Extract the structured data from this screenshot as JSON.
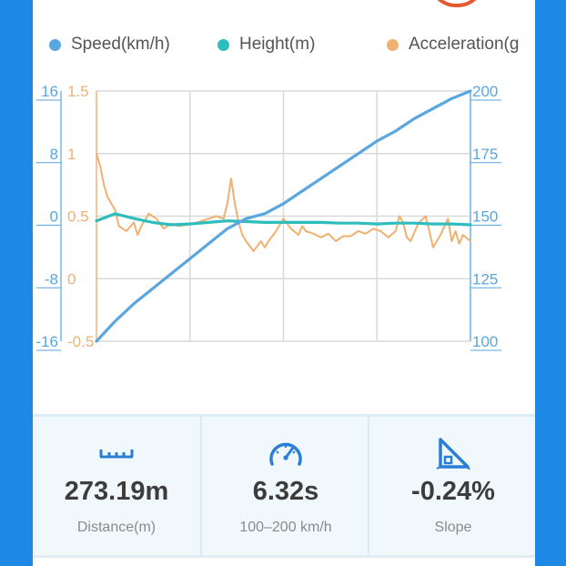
{
  "legend": [
    {
      "label": "Speed(km/h)",
      "color": "#5aa6e0"
    },
    {
      "label": "Height(m)",
      "color": "#2ebdbd"
    },
    {
      "label": "Acceleration(g",
      "color": "#f0b070"
    }
  ],
  "chart_data": {
    "type": "line",
    "axes": {
      "height_ticks": [
        "16",
        "8",
        "0",
        "-8",
        "-16"
      ],
      "acceleration_ticks": [
        "1.5",
        "1",
        "0.5",
        "0",
        "-0.5"
      ],
      "speed_ticks": [
        "200",
        "175",
        "150",
        "125",
        "100"
      ],
      "height_range": [
        -16,
        16
      ],
      "acceleration_range": [
        -0.5,
        1.5
      ],
      "speed_range": [
        100,
        200
      ]
    },
    "grid": true,
    "x_range": [
      0,
      100
    ],
    "series": [
      {
        "name": "Speed(km/h)",
        "color": "#5aa6e0",
        "axis": "right",
        "x": [
          0,
          5,
          10,
          15,
          20,
          25,
          30,
          35,
          40,
          45,
          50,
          55,
          60,
          65,
          70,
          75,
          80,
          85,
          90,
          95,
          100
        ],
        "y": [
          100,
          108,
          115,
          121,
          127,
          133,
          139,
          145,
          149,
          151,
          155,
          160,
          165,
          170,
          175,
          180,
          184,
          189,
          193,
          197,
          200
        ]
      },
      {
        "name": "Height(m)",
        "color": "#2ebdbd",
        "axis": "left",
        "x": [
          0,
          5,
          10,
          15,
          20,
          25,
          30,
          35,
          40,
          45,
          50,
          55,
          60,
          65,
          70,
          75,
          80,
          85,
          90,
          95,
          100
        ],
        "y": [
          -0.6,
          0.3,
          -0.3,
          -0.8,
          -1.1,
          -1.0,
          -0.8,
          -0.6,
          -0.7,
          -0.8,
          -0.8,
          -0.8,
          -0.8,
          -0.9,
          -0.9,
          -1.0,
          -0.9,
          -0.9,
          -1.0,
          -1.0,
          -1.1
        ]
      },
      {
        "name": "Acceleration(g",
        "color": "#f0b070",
        "axis": "mid",
        "x": [
          0,
          1,
          2,
          3,
          5,
          6,
          8,
          10,
          11,
          12,
          14,
          16,
          18,
          20,
          22,
          24,
          26,
          28,
          30,
          32,
          34,
          35,
          36,
          37,
          38,
          39,
          40,
          42,
          44,
          45,
          46,
          48,
          50,
          52,
          54,
          55,
          56,
          58,
          60,
          62,
          64,
          66,
          68,
          70,
          72,
          74,
          76,
          78,
          80,
          81,
          82,
          83,
          84,
          86,
          88,
          89,
          90,
          92,
          94,
          95,
          96,
          97,
          98,
          100
        ],
        "y": [
          1.0,
          0.9,
          0.75,
          0.65,
          0.55,
          0.42,
          0.38,
          0.45,
          0.35,
          0.42,
          0.52,
          0.48,
          0.4,
          0.44,
          0.42,
          0.43,
          0.44,
          0.46,
          0.48,
          0.5,
          0.48,
          0.6,
          0.8,
          0.6,
          0.45,
          0.35,
          0.3,
          0.22,
          0.3,
          0.25,
          0.3,
          0.38,
          0.48,
          0.4,
          0.35,
          0.42,
          0.38,
          0.36,
          0.33,
          0.36,
          0.3,
          0.34,
          0.34,
          0.38,
          0.36,
          0.4,
          0.38,
          0.33,
          0.38,
          0.5,
          0.45,
          0.33,
          0.3,
          0.44,
          0.5,
          0.38,
          0.25,
          0.35,
          0.48,
          0.3,
          0.38,
          0.28,
          0.35,
          0.3
        ]
      }
    ]
  },
  "stats": [
    {
      "icon": "ruler-icon",
      "value": "273.19m",
      "label": "Distance(m)"
    },
    {
      "icon": "speedometer-icon",
      "value": "6.32s",
      "label": "100–200 km/h"
    },
    {
      "icon": "slope-icon",
      "value": "-0.24%",
      "label": "Slope"
    }
  ],
  "colors": {
    "frame": "#1e88e5",
    "badge": "#e35b33",
    "icon": "#2a7fd4"
  }
}
